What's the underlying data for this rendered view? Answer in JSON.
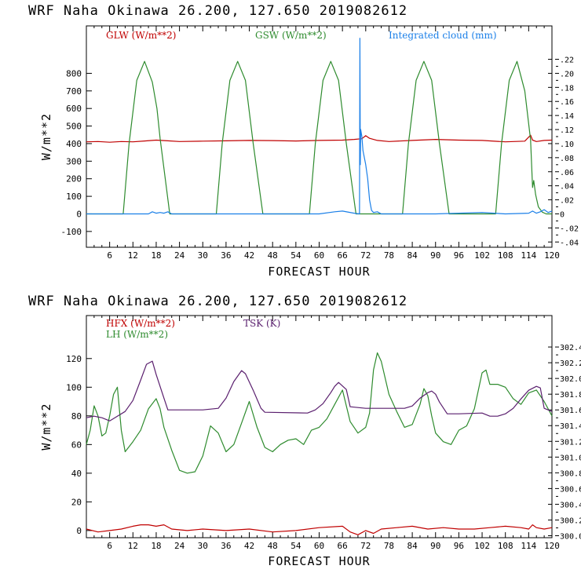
{
  "chart_data": [
    {
      "type": "line",
      "title": "WRF  Naha Okinawa  26.200, 127.650  2019082612",
      "xlabel": "FORECAST HOUR",
      "ylabel": "W/m**2",
      "xlim": [
        0,
        120
      ],
      "ylim": [
        -190,
        1070
      ],
      "yticks": [
        -100,
        0,
        100,
        200,
        300,
        400,
        500,
        600,
        700,
        800
      ],
      "xticks": [
        6,
        12,
        18,
        24,
        30,
        36,
        42,
        48,
        54,
        60,
        66,
        72,
        78,
        84,
        90,
        96,
        102,
        108,
        114,
        120
      ],
      "right_axis": {
        "ylim": [
          -0.0475,
          0.2675
        ],
        "ticks": [
          -0.04,
          -0.02,
          0,
          0.02,
          0.04,
          0.06,
          0.08,
          0.1,
          0.12,
          0.14,
          0.16,
          0.18,
          0.2,
          0.22
        ],
        "tick_labels": [
          "-.04",
          "-.02",
          "0",
          ".02",
          ".04",
          ".06",
          ".08",
          ".10",
          ".12",
          ".14",
          ".16",
          ".18",
          ".20",
          ".22"
        ]
      },
      "legend": [
        {
          "label": "GLW (W/m**2)",
          "color": "#c00000"
        },
        {
          "label": "GSW (W/m**2)",
          "color": "#2e8b2e"
        },
        {
          "label": "Integrated cloud (mm)",
          "color": "#1a7fe8"
        }
      ],
      "series": [
        {
          "name": "GLW (W/m**2)",
          "color": "#c00000",
          "axis": "left",
          "x": [
            0,
            3,
            6,
            9,
            12,
            15,
            18,
            21,
            24,
            30,
            36,
            42,
            48,
            54,
            60,
            66,
            69,
            71,
            72,
            73,
            75,
            78,
            84,
            90,
            96,
            102,
            108,
            113,
            114.5,
            115,
            116,
            118,
            120
          ],
          "y": [
            410,
            412,
            408,
            412,
            410,
            415,
            420,
            416,
            412,
            414,
            416,
            418,
            417,
            415,
            418,
            420,
            424,
            428,
            445,
            430,
            418,
            412,
            418,
            424,
            420,
            418,
            410,
            414,
            448,
            420,
            412,
            418,
            420
          ]
        },
        {
          "name": "GSW (W/m**2)",
          "color": "#2e8b2e",
          "axis": "left",
          "x": [
            0,
            9.5,
            11,
            13,
            15,
            17,
            18.2,
            19,
            21.5,
            33.5,
            35,
            37,
            39,
            41,
            43,
            45.5,
            57.5,
            59,
            61,
            63,
            65,
            67,
            69.5,
            81.5,
            83,
            85,
            87,
            89,
            91,
            93.5,
            105.5,
            107,
            109,
            111,
            113,
            114.5,
            115,
            115.3,
            115.8,
            116.5,
            117.5,
            118.5,
            120
          ],
          "y": [
            0,
            0,
            400,
            760,
            868,
            750,
            600,
            430,
            0,
            0,
            400,
            760,
            868,
            760,
            400,
            0,
            0,
            400,
            760,
            868,
            760,
            400,
            0,
            0,
            400,
            760,
            868,
            760,
            400,
            0,
            0,
            400,
            760,
            868,
            700,
            420,
            150,
            190,
            110,
            40,
            10,
            0,
            0
          ]
        },
        {
          "name": "Integrated cloud (mm)",
          "color": "#1a7fe8",
          "axis": "right",
          "x": [
            0,
            16,
            17,
            18,
            19,
            20,
            21,
            22,
            60,
            64,
            66,
            69,
            70.4,
            70.5,
            70.6,
            70.7,
            71,
            71.3,
            72,
            72.5,
            73,
            73.5,
            74,
            75,
            76,
            90,
            102,
            108,
            114,
            115,
            116,
            117,
            118,
            119,
            120
          ],
          "y": [
            0,
            0,
            0.003,
            0.001,
            0.002,
            0.001,
            0.003,
            0,
            0,
            0.003,
            0.004,
            0.001,
            0,
            0.25,
            0.07,
            0.12,
            0.11,
            0.09,
            0.07,
            0.05,
            0.02,
            0.005,
            0.002,
            0.003,
            0,
            0,
            0.002,
            0,
            0.001,
            0.004,
            0.001,
            0.003,
            0.006,
            0.002,
            0.004
          ]
        }
      ]
    },
    {
      "type": "line",
      "title": "WRF  Naha Okinawa  26.200, 127.650  2019082612",
      "xlabel": "FORECAST HOUR",
      "ylabel": "W/m**2",
      "xlim": [
        0,
        120
      ],
      "ylim": [
        -5,
        150
      ],
      "yticks": [
        0,
        20,
        40,
        60,
        80,
        100,
        120
      ],
      "xticks": [
        6,
        12,
        18,
        24,
        30,
        36,
        42,
        48,
        54,
        60,
        66,
        72,
        78,
        84,
        90,
        96,
        102,
        108,
        114,
        120
      ],
      "right_axis": {
        "ylim": [
          299.975,
          302.8
        ],
        "ticks": [
          300.0,
          300.2,
          300.4,
          300.6,
          300.8,
          301.0,
          301.2,
          301.4,
          301.6,
          301.8,
          302.0,
          302.2,
          302.4
        ],
        "tick_labels": [
          "300.0",
          "300.2",
          "300.4",
          "300.6",
          "300.8",
          "301.0",
          "301.2",
          "301.4",
          "301.6",
          "301.8",
          "302.0",
          "302.2",
          "302.4"
        ]
      },
      "legend": [
        {
          "label": "HFX (W/m**2)",
          "color": "#c00000"
        },
        {
          "label": "LH  (W/m**2)",
          "color": "#2e8b2e"
        },
        {
          "label": "TSK (K)",
          "color": "#5a1f6e"
        }
      ],
      "series": [
        {
          "name": "HFX (W/m**2)",
          "color": "#c00000",
          "axis": "left",
          "x": [
            0,
            3,
            6,
            9,
            12,
            14,
            16,
            18,
            20,
            22,
            26,
            30,
            36,
            42,
            48,
            54,
            60,
            66,
            68,
            70,
            72,
            74,
            76,
            80,
            84,
            88,
            92,
            96,
            100,
            104,
            108,
            112,
            114,
            115,
            116,
            118,
            120
          ],
          "y": [
            1,
            -1,
            0,
            1,
            3,
            4,
            4,
            3,
            4,
            1,
            0,
            1,
            0,
            1,
            -1,
            0,
            2,
            3,
            -1,
            -3,
            0,
            -2,
            1,
            2,
            3,
            1,
            2,
            1,
            1,
            2,
            3,
            2,
            1,
            4,
            2,
            1,
            2
          ]
        },
        {
          "name": "LH  (W/m**2)",
          "color": "#2e8b2e",
          "axis": "left",
          "x": [
            0,
            1,
            2,
            3,
            4,
            5,
            6,
            7,
            8,
            9,
            10,
            12,
            14,
            16,
            18,
            19,
            20,
            22,
            24,
            26,
            28,
            30,
            32,
            34,
            36,
            38,
            40,
            42,
            44,
            46,
            48,
            50,
            52,
            54,
            56,
            58,
            60,
            62,
            64,
            66,
            68,
            70,
            72,
            73,
            74,
            75,
            76,
            78,
            80,
            82,
            84,
            86,
            87,
            88,
            89,
            90,
            92,
            94,
            96,
            98,
            100,
            102,
            103,
            104,
            106,
            108,
            110,
            112,
            114,
            116,
            118,
            120
          ],
          "y": [
            60,
            70,
            87,
            80,
            66,
            68,
            80,
            95,
            100,
            70,
            55,
            62,
            70,
            85,
            92,
            85,
            72,
            56,
            42,
            40,
            41,
            52,
            73,
            68,
            55,
            60,
            75,
            90,
            72,
            58,
            55,
            60,
            63,
            64,
            60,
            70,
            72,
            78,
            88,
            98,
            76,
            68,
            72,
            82,
            112,
            124,
            118,
            95,
            83,
            72,
            74,
            88,
            99,
            94,
            80,
            68,
            62,
            60,
            70,
            73,
            85,
            110,
            112,
            102,
            102,
            100,
            92,
            88,
            96,
            98,
            90,
            80
          ]
        },
        {
          "name": "TSK (K)",
          "color": "#5a1f6e",
          "axis": "right",
          "x": [
            0,
            2,
            4,
            6,
            8,
            10,
            12,
            14,
            15.5,
            17,
            18,
            20,
            21,
            30,
            34,
            36,
            38,
            40,
            41,
            43,
            45,
            46,
            57,
            59,
            61,
            63,
            64,
            65,
            67,
            68,
            72,
            78,
            82,
            84,
            86,
            88,
            89,
            90,
            91,
            93,
            96,
            102,
            104,
            106,
            108,
            110,
            112,
            114,
            116,
            117,
            118,
            119,
            120
          ],
          "y": [
            301.5,
            301.52,
            301.5,
            301.46,
            301.52,
            301.58,
            301.72,
            301.98,
            302.18,
            302.22,
            302.05,
            301.75,
            301.6,
            301.6,
            301.62,
            301.75,
            301.96,
            302.1,
            302.06,
            301.85,
            301.62,
            301.57,
            301.56,
            301.6,
            301.68,
            301.82,
            301.9,
            301.95,
            301.86,
            301.64,
            301.62,
            301.62,
            301.62,
            301.65,
            301.75,
            301.82,
            301.84,
            301.8,
            301.7,
            301.55,
            301.55,
            301.56,
            301.52,
            301.52,
            301.55,
            301.62,
            301.74,
            301.85,
            301.9,
            301.88,
            301.62,
            301.6,
            301.58
          ]
        }
      ]
    }
  ]
}
